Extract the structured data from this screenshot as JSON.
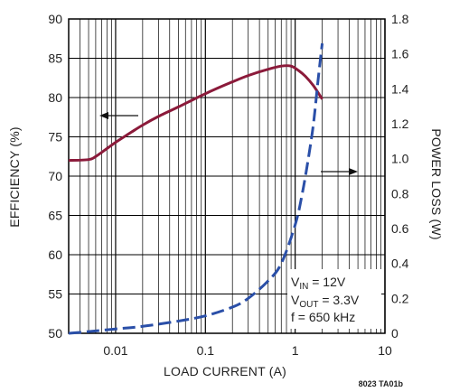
{
  "chart_data": {
    "type": "line",
    "xlabel": "LOAD CURRENT (A)",
    "ylabel_left": "EFFICIENCY (%)",
    "ylabel_right": "POWER LOSS (W)",
    "x_scale": "log",
    "xlim": [
      0.003,
      10
    ],
    "x_ticks": [
      {
        "value": 0.01,
        "label": "0.01"
      },
      {
        "value": 0.1,
        "label": "0.1"
      },
      {
        "value": 1,
        "label": "1"
      },
      {
        "value": 10,
        "label": "10"
      }
    ],
    "ylim_left": [
      50,
      90
    ],
    "y_ticks_left": [
      "50",
      "55",
      "60",
      "65",
      "70",
      "75",
      "80",
      "85",
      "90"
    ],
    "ylim_right": [
      0,
      1.8
    ],
    "y_ticks_right": [
      "0",
      "0.2",
      "0.4",
      "0.6",
      "0.8",
      "1.0",
      "1.2",
      "1.4",
      "1.6",
      "1.8"
    ],
    "grid": true,
    "series": [
      {
        "axis": "left",
        "style": "solid",
        "color": "#8b1a3a",
        "x": [
          0.003,
          0.005,
          0.006,
          0.008,
          0.01,
          0.015,
          0.02,
          0.03,
          0.05,
          0.1,
          0.2,
          0.3,
          0.5,
          0.7,
          0.9,
          1.1,
          1.3,
          1.6,
          2.0
        ],
        "y": [
          72.0,
          72.1,
          72.5,
          73.5,
          74.3,
          75.6,
          76.5,
          77.6,
          78.8,
          80.5,
          82.0,
          82.8,
          83.6,
          84.0,
          84.0,
          83.4,
          82.7,
          81.5,
          79.8
        ]
      },
      {
        "axis": "right",
        "style": "dashed",
        "color": "#2a4fa8",
        "x": [
          0.003,
          0.005,
          0.01,
          0.02,
          0.05,
          0.1,
          0.2,
          0.3,
          0.5,
          0.7,
          1.0,
          1.2,
          1.4,
          1.6,
          1.8,
          2.0
        ],
        "y": [
          0.0,
          0.01,
          0.025,
          0.04,
          0.07,
          0.1,
          0.15,
          0.2,
          0.3,
          0.4,
          0.62,
          0.8,
          1.0,
          1.2,
          1.45,
          1.66
        ]
      }
    ],
    "annotations": {
      "conditions": [
        {
          "base": "V",
          "sub": "IN",
          "rest": " = 12V"
        },
        {
          "base": "V",
          "sub": "OUT",
          "rest": " = 3.3V"
        },
        {
          "base": "f = 650 kHz",
          "sub": "",
          "rest": ""
        }
      ],
      "figure_id": "8023 TA01b"
    },
    "colors": {
      "efficiency": "#8b1a3a",
      "power_loss": "#2a4fa8",
      "grid": "#000000",
      "text": "#222222"
    }
  }
}
